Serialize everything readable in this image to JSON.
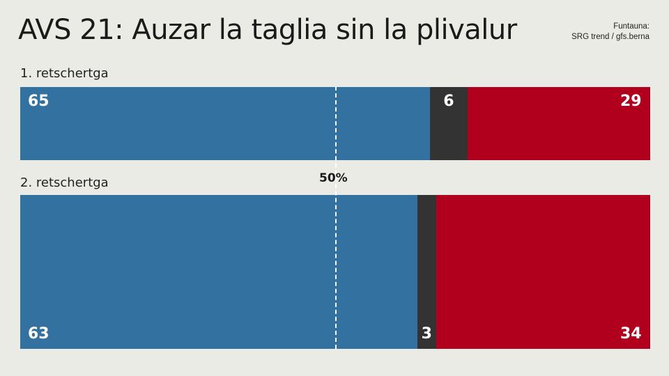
{
  "title": "AVS 21: Auzar la taglia sin la plivalur",
  "source": {
    "line1": "Funtauna:",
    "line2": "SRG trend / gfs.berna"
  },
  "colors": {
    "yes": "#3271a0",
    "undecided": "#333333",
    "no": "#b0001e",
    "background": "#ebebe6"
  },
  "chart_data": {
    "type": "bar",
    "orientation": "horizontal-stacked-100",
    "title": "AVS 21: Auzar la taglia sin la plivalur",
    "categories": [
      "1. retschertga",
      "2. retschertga"
    ],
    "series": [
      {
        "values": [
          65,
          63
        ]
      },
      {
        "values": [
          6,
          3
        ]
      },
      {
        "values": [
          29,
          34
        ]
      }
    ],
    "reference_line": {
      "value": 50,
      "label": "50%"
    },
    "xlim": [
      0,
      100
    ]
  }
}
